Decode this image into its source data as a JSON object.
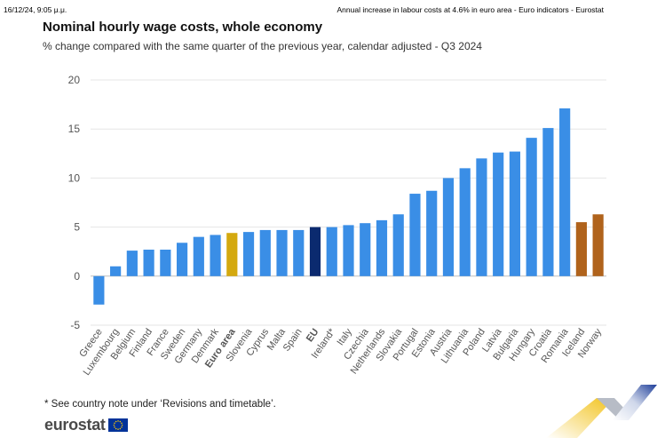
{
  "header": {
    "timestamp": "16/12/24, 9:05 μ.μ.",
    "page_title": "Annual increase in labour costs at 4.6% in euro area - Euro indicators - Eurostat"
  },
  "footnote": "* See country note under ‘Revisions and timetable’.",
  "logo": {
    "text": "eurostat",
    "flag_color": "#003399",
    "star_color": "#ffcc00"
  },
  "colors": {
    "country": "#3a8ee6",
    "euro_area": "#d4a90f",
    "eu": "#0b2a6f",
    "efta": "#b0631c",
    "gridline": "#e6e6e6"
  },
  "chart_data": {
    "type": "bar",
    "title": "Nominal hourly wage costs, whole economy",
    "subtitle": "% change compared with the same quarter of the previous year, calendar adjusted - Q3 2024",
    "xlabel": "",
    "ylabel": "",
    "ylim": [
      -5,
      20
    ],
    "yticks": [
      -5,
      0,
      5,
      10,
      15,
      20
    ],
    "grid": true,
    "categories": [
      "Greece",
      "Luxembourg",
      "Belgium",
      "Finland",
      "France",
      "Sweden",
      "Germany",
      "Denmark",
      "Euro area",
      "Slovenia",
      "Cyprus",
      "Malta",
      "Spain",
      "EU",
      "Ireland*",
      "Italy",
      "Czechia",
      "Netherlands",
      "Slovakia",
      "Portugal",
      "Estonia",
      "Austria",
      "Lithuania",
      "Poland",
      "Latvia",
      "Bulgaria",
      "Hungary",
      "Croatia",
      "Romania",
      "Iceland",
      "Norway"
    ],
    "values": [
      -2.9,
      1.0,
      2.6,
      2.7,
      2.7,
      3.4,
      4.0,
      4.2,
      4.4,
      4.5,
      4.7,
      4.7,
      4.7,
      5.0,
      5.0,
      5.2,
      5.4,
      5.7,
      6.3,
      8.4,
      8.7,
      10.0,
      11.0,
      12.0,
      12.6,
      12.7,
      14.1,
      15.1,
      17.1,
      5.5,
      6.3
    ],
    "groups": [
      "country",
      "country",
      "country",
      "country",
      "country",
      "country",
      "country",
      "country",
      "euro_area",
      "country",
      "country",
      "country",
      "country",
      "eu",
      "country",
      "country",
      "country",
      "country",
      "country",
      "country",
      "country",
      "country",
      "country",
      "country",
      "country",
      "country",
      "country",
      "country",
      "country",
      "efta",
      "efta"
    ],
    "bold_labels": [
      "Euro area",
      "EU"
    ]
  }
}
